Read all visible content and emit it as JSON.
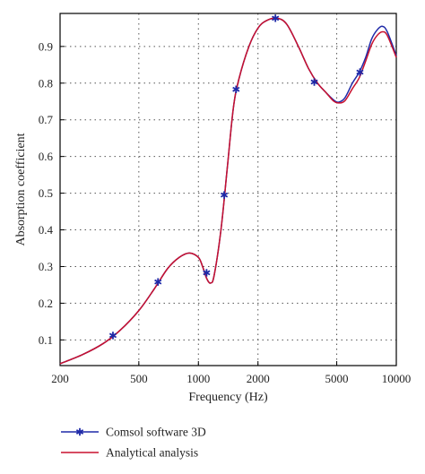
{
  "colors": {
    "comsol": "#1f2aa8",
    "analytical": "#c8102e",
    "grid": "#555555",
    "axis": "#000000"
  },
  "chart_data": {
    "type": "line",
    "title": "",
    "xlabel": "Frequency (Hz)",
    "ylabel": "Absorption coefficient",
    "xscale": "log",
    "xlim": [
      200,
      10000
    ],
    "ylim": [
      0.03,
      0.99
    ],
    "x_ticks": [
      200,
      500,
      1000,
      2000,
      5000,
      10000
    ],
    "x_tick_labels": [
      "200",
      "500",
      "1000",
      "2000",
      "5000",
      "10000"
    ],
    "y_ticks": [
      0.1,
      0.2,
      0.3,
      0.4,
      0.5,
      0.6,
      0.7,
      0.8,
      0.9
    ],
    "y_tick_labels": [
      "0.1",
      "0.2",
      "0.3",
      "0.4",
      "0.5",
      "0.6",
      "0.7",
      "0.8",
      "0.9"
    ],
    "grid": true,
    "legend_position": "bottom",
    "series": [
      {
        "name": "Comsol software 3D",
        "color": "#1f2aa8",
        "marker": "asterisk",
        "x": [
          200,
          260,
          330,
          400,
          500,
          600,
          700,
          800,
          900,
          1000,
          1050,
          1100,
          1150,
          1200,
          1300,
          1400,
          1500,
          1600,
          1800,
          2000,
          2200,
          2500,
          2800,
          3200,
          3600,
          4000,
          4400,
          4800,
          5100,
          5500,
          6000,
          6500,
          7000,
          7500,
          8000,
          8500,
          9000,
          10000
        ],
        "y": [
          0.035,
          0.06,
          0.09,
          0.125,
          0.18,
          0.24,
          0.295,
          0.325,
          0.337,
          0.325,
          0.3,
          0.268,
          0.255,
          0.275,
          0.4,
          0.57,
          0.73,
          0.81,
          0.9,
          0.95,
          0.97,
          0.977,
          0.96,
          0.9,
          0.84,
          0.8,
          0.775,
          0.755,
          0.748,
          0.76,
          0.8,
          0.83,
          0.87,
          0.92,
          0.945,
          0.955,
          0.94,
          0.875
        ],
        "markers_x": [
          370,
          625,
          1100,
          1350,
          1550,
          2450,
          3850,
          6550
        ],
        "markers_y": [
          0.112,
          0.258,
          0.283,
          0.495,
          0.783,
          0.977,
          0.803,
          0.83
        ]
      },
      {
        "name": "Analytical analysis",
        "color": "#c8102e",
        "marker": "none",
        "x": [
          200,
          260,
          330,
          400,
          500,
          600,
          700,
          800,
          900,
          1000,
          1050,
          1100,
          1150,
          1200,
          1300,
          1400,
          1500,
          1600,
          1800,
          2000,
          2200,
          2500,
          2800,
          3200,
          3600,
          4000,
          4400,
          4800,
          5100,
          5500,
          6000,
          6500,
          7000,
          7500,
          8000,
          8500,
          9000,
          10000
        ],
        "y": [
          0.035,
          0.06,
          0.09,
          0.125,
          0.18,
          0.24,
          0.295,
          0.325,
          0.337,
          0.325,
          0.3,
          0.268,
          0.255,
          0.275,
          0.4,
          0.57,
          0.73,
          0.81,
          0.9,
          0.95,
          0.97,
          0.977,
          0.96,
          0.9,
          0.84,
          0.8,
          0.775,
          0.752,
          0.746,
          0.752,
          0.785,
          0.815,
          0.86,
          0.905,
          0.93,
          0.94,
          0.93,
          0.87
        ]
      }
    ]
  }
}
